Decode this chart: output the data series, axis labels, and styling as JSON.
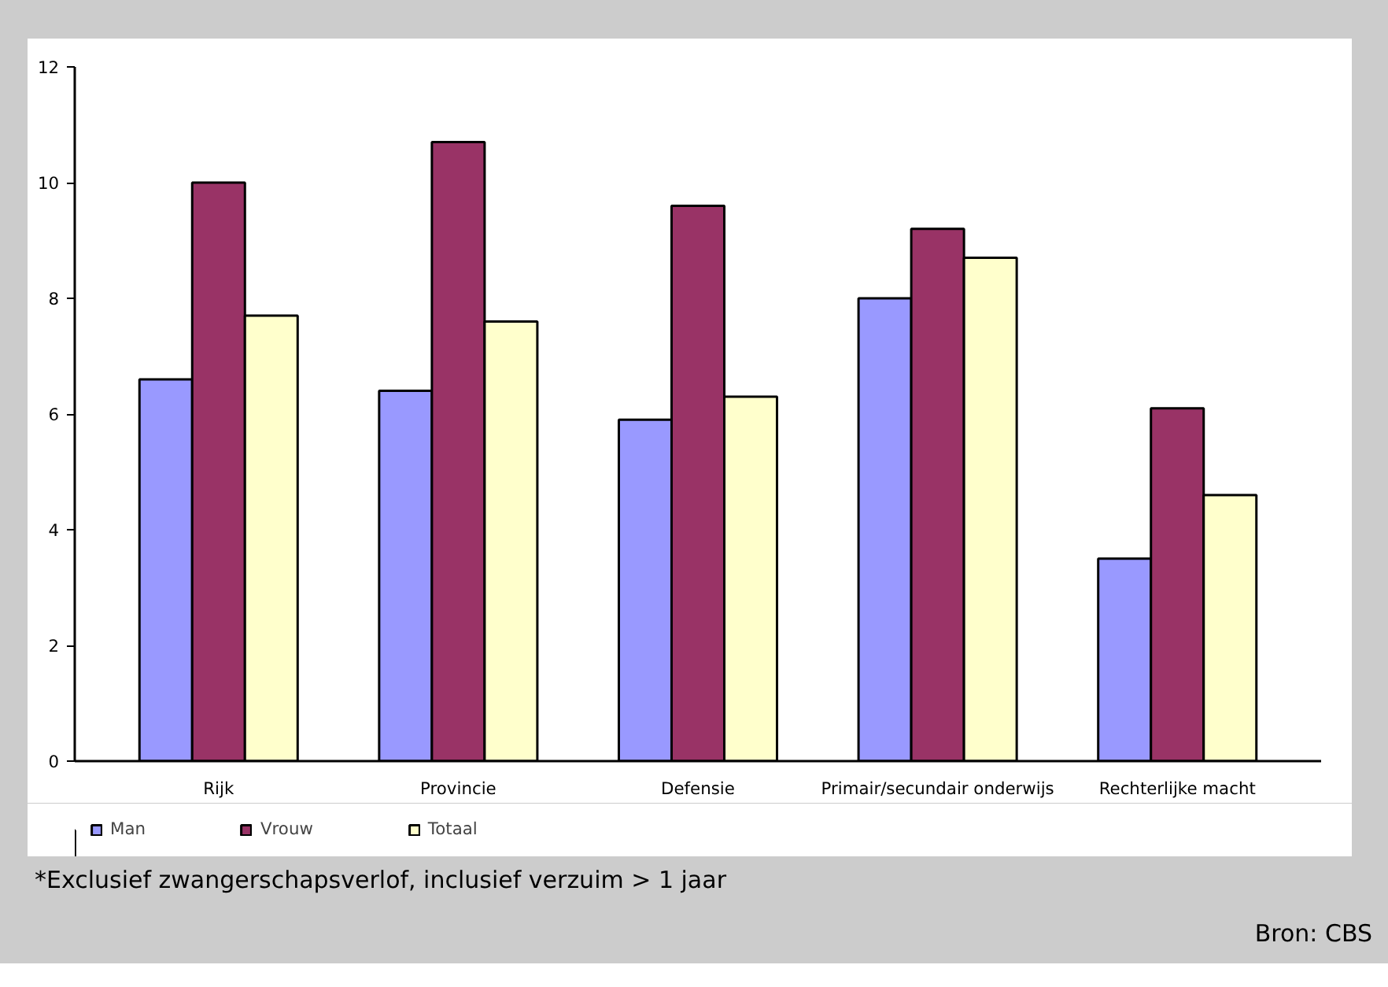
{
  "chart_data": {
    "type": "bar",
    "categories": [
      "Rijk",
      "Provincie",
      "Defensie",
      "Primair/secundair onderwijs",
      "Rechterlijke macht"
    ],
    "series": [
      {
        "name": "Man",
        "color": "#9999ff",
        "values": [
          6.6,
          6.4,
          5.9,
          8.0,
          3.5
        ]
      },
      {
        "name": "Vrouw",
        "color": "#993366",
        "values": [
          10.0,
          10.7,
          9.6,
          9.2,
          6.1
        ]
      },
      {
        "name": "Totaal",
        "color": "#ffffcc",
        "values": [
          7.7,
          7.6,
          6.3,
          8.7,
          4.6
        ]
      }
    ],
    "ylim": [
      0,
      12
    ],
    "yticks": [
      0,
      2,
      4,
      6,
      8,
      10,
      12
    ],
    "grid": false,
    "legend": "bottom left",
    "annotations": [
      "*Exclusief zwangerschapsverlof, inclusief verzuim  > 1 jaar",
      "Bron: CBS"
    ]
  }
}
